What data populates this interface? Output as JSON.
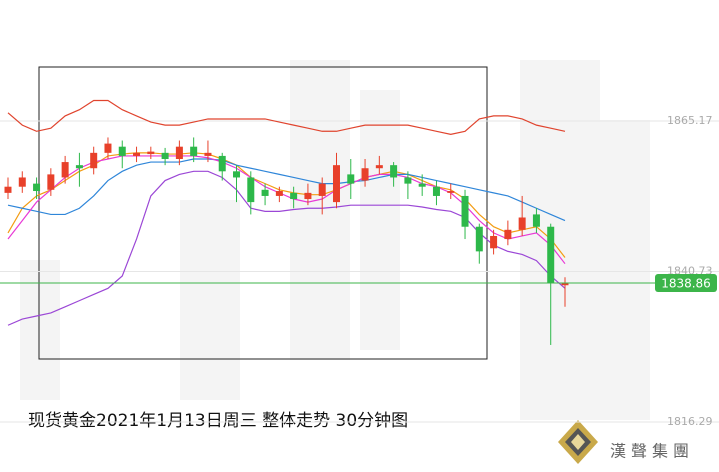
{
  "chart_data": {
    "type": "candlestick",
    "title": "现货黄金2021年1月13日周三 整体走势 30分钟图",
    "logo": "漢聲集團",
    "up_color": "#e8402a",
    "down_color": "#2db84a",
    "open": [
      1853.5,
      1854.5,
      1855,
      1854,
      1856,
      1858,
      1857.5,
      1860,
      1861,
      1859.5,
      1859.8,
      1860,
      1859,
      1861,
      1859.5,
      1859.5,
      1857,
      1856,
      1854,
      1853,
      1853.5,
      1852.5,
      1853,
      1852,
      1856.5,
      1855.5,
      1857.5,
      1858,
      1856,
      1855,
      1854.5,
      1853.5,
      1853,
      1848,
      1844.5,
      1846,
      1847.5,
      1850,
      1848,
      1838.5
    ],
    "high": [
      1856,
      1857,
      1856,
      1857.5,
      1859.5,
      1860,
      1861,
      1862.5,
      1862,
      1861,
      1861,
      1860.8,
      1862,
      1862.5,
      1862,
      1860,
      1858,
      1857,
      1855,
      1854.5,
      1854.5,
      1855,
      1856,
      1860,
      1859,
      1859,
      1859.5,
      1858.5,
      1857,
      1856.5,
      1855.5,
      1855,
      1854,
      1848.5,
      1847.5,
      1849,
      1853,
      1851,
      1848.5,
      1839.8
    ],
    "low": [
      1852.5,
      1853.5,
      1852.5,
      1853,
      1855,
      1854.5,
      1856.5,
      1859,
      1857.5,
      1858.5,
      1859,
      1858,
      1858,
      1858.5,
      1858.5,
      1855.5,
      1852,
      1850,
      1851.5,
      1852,
      1851,
      1851.5,
      1850,
      1851,
      1852.5,
      1854.5,
      1856.5,
      1854.5,
      1852.5,
      1853,
      1851.5,
      1852.5,
      1846,
      1842,
      1843.5,
      1845,
      1846.5,
      1847,
      1828.8,
      1835
    ],
    "close": [
      1854.5,
      1856,
      1853.8,
      1856.5,
      1858.5,
      1857.5,
      1860,
      1861.5,
      1859.5,
      1860,
      1860.2,
      1859,
      1861,
      1859.5,
      1860,
      1857,
      1856,
      1852,
      1853,
      1853.8,
      1852.5,
      1853.5,
      1855,
      1858,
      1855,
      1857.5,
      1858,
      1856,
      1855,
      1854.5,
      1853,
      1853.8,
      1848,
      1844,
      1846.5,
      1847.5,
      1849.5,
      1848,
      1838.8,
      1838.86
    ],
    "series": [
      {
        "color": "#e0442e",
        "values": [
          1866.5,
          1864.5,
          1863.5,
          1864,
          1866,
          1867,
          1868.5,
          1868.5,
          1867,
          1866,
          1865,
          1864.5,
          1864.5,
          1865,
          1865.5,
          1865.5,
          1865.5,
          1865.5,
          1865.5,
          1865,
          1864.5,
          1864,
          1863.5,
          1863.5,
          1864,
          1864.5,
          1864.5,
          1864.5,
          1864.5,
          1864,
          1863.5,
          1863,
          1863.5,
          1865.5,
          1866,
          1866,
          1865.5,
          1864.5,
          1864,
          1863.5
        ]
      },
      {
        "color": "#f39c12",
        "values": [
          1847,
          1851,
          1853,
          1854,
          1855.5,
          1857,
          1858,
          1859.5,
          1859.8,
          1860,
          1860,
          1859.8,
          1859.8,
          1860,
          1859.8,
          1859,
          1858,
          1856,
          1855,
          1854,
          1853.5,
          1853.2,
          1853.2,
          1854,
          1855,
          1856,
          1856.5,
          1857,
          1856.5,
          1855.5,
          1854.5,
          1854,
          1852.5,
          1850,
          1848,
          1847,
          1847.5,
          1848,
          1846,
          1843
        ]
      },
      {
        "color": "#2f86d9",
        "values": [
          1851.5,
          1851,
          1850.5,
          1850,
          1850,
          1851,
          1853,
          1855.5,
          1857,
          1858,
          1858.5,
          1858.5,
          1858.5,
          1859,
          1859,
          1858.8,
          1858,
          1857.5,
          1857,
          1856.5,
          1856,
          1855.5,
          1855,
          1855,
          1855.3,
          1855.5,
          1856,
          1856.5,
          1856.5,
          1856,
          1855.5,
          1855,
          1854.5,
          1854,
          1853.5,
          1853,
          1852,
          1851,
          1850,
          1849
        ]
      },
      {
        "color": "#e83ad6",
        "values": [
          1846,
          1849,
          1852,
          1854,
          1856,
          1857.5,
          1858.5,
          1859,
          1859.5,
          1859.5,
          1859.5,
          1859.5,
          1859.5,
          1859.5,
          1859.2,
          1858.5,
          1857.5,
          1856,
          1854.5,
          1853.5,
          1852.5,
          1852,
          1852.5,
          1854,
          1855,
          1856,
          1856.5,
          1856.5,
          1856,
          1855,
          1854.5,
          1853.5,
          1851.5,
          1849,
          1847,
          1846,
          1846.5,
          1847,
          1845,
          1842
        ]
      },
      {
        "color": "#9b47d6",
        "values": [
          1832,
          1833,
          1833.5,
          1834,
          1835,
          1836,
          1837,
          1838,
          1840,
          1846,
          1853,
          1855.5,
          1856.5,
          1857,
          1857,
          1856,
          1854,
          1851,
          1850.5,
          1850.5,
          1850.8,
          1851,
          1851,
          1851.2,
          1851.5,
          1851.5,
          1851.5,
          1851.5,
          1851.5,
          1851.2,
          1850.8,
          1850.5,
          1849.5,
          1847,
          1845,
          1844,
          1843.5,
          1842.5,
          1840,
          1838
        ]
      }
    ],
    "last_price_color": "#3cb54a",
    "ylim": [
      1808.17,
      1884.82
    ],
    "yticks": [
      1816.29,
      1840.73,
      1865.17
    ],
    "grid": true
  }
}
